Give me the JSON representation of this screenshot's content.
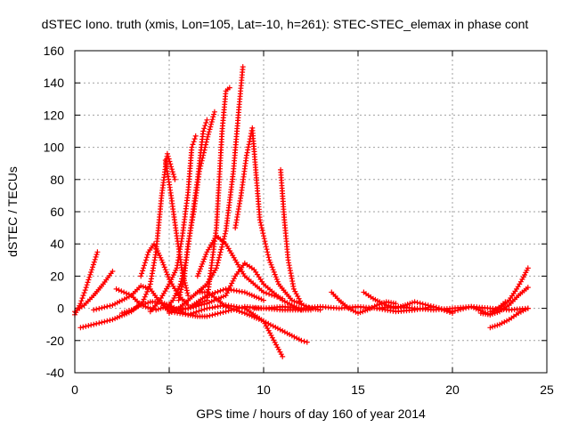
{
  "chart_data": {
    "type": "line",
    "title": "dSTEC Iono. truth (xmis, Lon=105, Lat=-10, h=261): STEC-STEC_elemax in phase cont",
    "xlabel": "GPS time / hours of day 160 of year 2014",
    "ylabel": "dSTEC  / TECUs",
    "xlim": [
      0,
      25
    ],
    "ylim": [
      -40,
      160
    ],
    "xticks": [
      "0",
      "5",
      "10",
      "15",
      "20",
      "25"
    ],
    "yticks": [
      "-40",
      "-20",
      "0",
      "20",
      "40",
      "60",
      "80",
      "100",
      "120",
      "140",
      "160"
    ],
    "grid": true,
    "color": "#ff0000",
    "marker": "plus",
    "series": [
      {
        "x": [
          0.0,
          0.3,
          0.6,
          0.9,
          1.2
        ],
        "y": [
          -4,
          3,
          13,
          24,
          35
        ]
      },
      {
        "x": [
          0.0,
          0.5,
          1.0,
          1.5,
          2.0
        ],
        "y": [
          -2,
          2,
          8,
          15,
          23
        ]
      },
      {
        "x": [
          0.3,
          1.0,
          2.0,
          3.0,
          3.6,
          4.0,
          4.3,
          4.6,
          4.9,
          5.3
        ],
        "y": [
          -12,
          -10,
          -7,
          -2,
          4,
          15,
          35,
          70,
          96,
          80
        ]
      },
      {
        "x": [
          1.0,
          2.0,
          3.0,
          3.5,
          4.0,
          4.5,
          5.0,
          6.0,
          7.0,
          8.0,
          9.0,
          10.0,
          11.0
        ],
        "y": [
          -1,
          2,
          8,
          14,
          12,
          4,
          -2,
          -4,
          0,
          2,
          0,
          -8,
          -30
        ]
      },
      {
        "x": [
          2.5,
          3.0,
          3.5,
          4.0,
          4.5,
          5.0,
          5.5,
          6.0,
          6.5,
          7.0,
          8.0,
          9.0,
          10.0,
          11.0,
          12.5
        ],
        "y": [
          -3,
          -1,
          2,
          4,
          4,
          2,
          -1,
          -4,
          -5,
          -5,
          -2,
          1,
          0,
          -1,
          -1
        ]
      },
      {
        "x": [
          2.2,
          3.0,
          3.5,
          4.0,
          4.3,
          4.8,
          5.5,
          6.0,
          7.0,
          8.0,
          9.0,
          10.0
        ],
        "y": [
          12,
          8,
          2,
          0,
          -1,
          1,
          -1,
          0,
          8,
          12,
          10,
          5
        ]
      },
      {
        "x": [
          3.5,
          3.9,
          4.2,
          4.6,
          5.0,
          5.5,
          6.0
        ],
        "y": [
          20,
          35,
          40,
          30,
          18,
          8,
          2
        ]
      },
      {
        "x": [
          4.0,
          4.5,
          5.0,
          5.4,
          5.7,
          6.0,
          6.2,
          6.4
        ],
        "y": [
          -2,
          5,
          15,
          25,
          45,
          72,
          100,
          107
        ]
      },
      {
        "x": [
          4.8,
          5.1,
          5.4,
          5.7,
          6.0
        ],
        "y": [
          92,
          70,
          45,
          22,
          8
        ]
      },
      {
        "x": [
          4.8,
          5.2,
          5.6,
          5.9,
          6.2,
          6.5,
          6.8,
          7.0
        ],
        "y": [
          0,
          5,
          15,
          30,
          55,
          80,
          110,
          117
        ]
      },
      {
        "x": [
          5.0,
          5.5,
          6.0,
          6.5,
          7.0,
          7.5,
          8.0,
          9.0,
          10.0,
          11.0,
          12.0,
          12.3
        ],
        "y": [
          -3,
          0,
          5,
          10,
          10,
          6,
          1,
          -3,
          -8,
          -14,
          -20,
          -21
        ]
      },
      {
        "x": [
          5.5,
          5.8,
          6.0,
          6.3,
          6.6,
          7.0,
          7.4
        ],
        "y": [
          5,
          20,
          40,
          60,
          85,
          105,
          122
        ]
      },
      {
        "x": [
          6.5,
          7.0,
          7.5,
          8.0,
          8.5,
          9.0,
          10.0,
          11.0
        ],
        "y": [
          20,
          35,
          45,
          40,
          30,
          20,
          10,
          6
        ]
      },
      {
        "x": [
          5.0,
          6.0,
          7.0,
          7.5,
          7.8,
          8.0,
          8.2
        ],
        "y": [
          -1,
          0,
          5,
          50,
          110,
          135,
          137
        ]
      },
      {
        "x": [
          6.5,
          7.0,
          7.5,
          8.0,
          8.4,
          8.7,
          8.9
        ],
        "y": [
          10,
          15,
          25,
          48,
          85,
          125,
          150
        ]
      },
      {
        "x": [
          8.5,
          8.8,
          9.1,
          9.4,
          9.8,
          10.3,
          10.8,
          11.5,
          12.5,
          13.0
        ],
        "y": [
          50,
          70,
          95,
          112,
          55,
          30,
          15,
          5,
          0,
          -1
        ]
      },
      {
        "x": [
          10.9,
          11.1,
          11.3,
          11.6,
          12.0
        ],
        "y": [
          86,
          55,
          30,
          12,
          3
        ]
      },
      {
        "x": [
          6.0,
          7.0,
          8.0,
          8.5,
          9.0,
          9.5,
          10.0,
          11.0,
          12.0
        ],
        "y": [
          0,
          3,
          8,
          20,
          28,
          24,
          15,
          5,
          -1
        ]
      },
      {
        "x": [
          9.5,
          10.0,
          11.0,
          12.0,
          13.0,
          14.0,
          15.0,
          16.0,
          17.0,
          18.0,
          19.0,
          20.0,
          21.0,
          22.0,
          23.0,
          24.0
        ],
        "y": [
          0,
          0,
          1,
          0,
          1,
          0,
          1,
          0,
          1,
          0,
          -1,
          0,
          1,
          0,
          -1,
          0
        ]
      },
      {
        "x": [
          13.6,
          14.0,
          14.5,
          15.0,
          15.5,
          16.0,
          16.5,
          17.0
        ],
        "y": [
          10,
          5,
          0,
          -3,
          -1,
          2,
          4,
          3
        ]
      },
      {
        "x": [
          15.3,
          15.8,
          16.5,
          17.0,
          17.5,
          18.0,
          19.0,
          20.0
        ],
        "y": [
          10,
          6,
          2,
          0,
          2,
          4,
          1,
          -3
        ]
      },
      {
        "x": [
          16.0,
          17.0,
          18.0,
          19.0,
          20.0,
          21.0,
          22.0,
          22.8
        ],
        "y": [
          0,
          -2,
          -1,
          1,
          -2,
          1,
          -4,
          4
        ]
      },
      {
        "x": [
          22.0,
          22.5,
          23.0,
          23.5,
          24.0
        ],
        "y": [
          -12,
          -10,
          -7,
          -3,
          0
        ]
      },
      {
        "x": [
          22.0,
          22.5,
          23.0,
          23.4,
          23.7,
          24.0
        ],
        "y": [
          -2,
          0,
          5,
          12,
          18,
          25
        ]
      },
      {
        "x": [
          21.5,
          22.0,
          22.5,
          23.0,
          23.5,
          24.0
        ],
        "y": [
          -3,
          -4,
          -2,
          2,
          8,
          13
        ]
      }
    ]
  }
}
